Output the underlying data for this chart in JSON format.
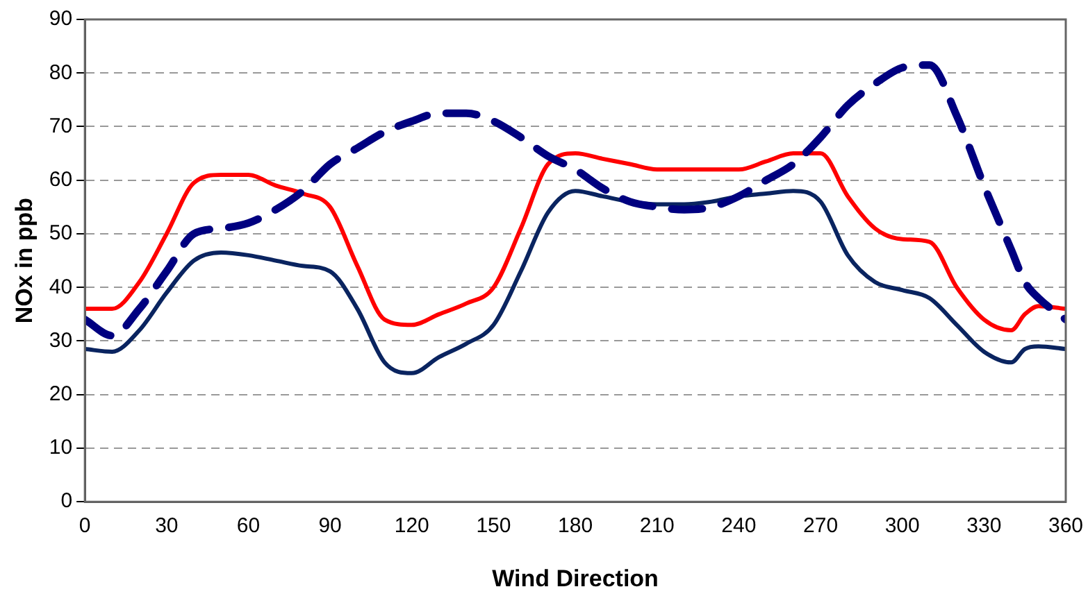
{
  "chart_data": {
    "type": "line",
    "xlabel": "Wind Direction",
    "ylabel": "NOx in ppb",
    "x": [
      0,
      10,
      20,
      30,
      40,
      50,
      60,
      70,
      80,
      90,
      100,
      110,
      120,
      130,
      140,
      150,
      160,
      170,
      180,
      190,
      200,
      210,
      220,
      230,
      240,
      250,
      260,
      270,
      280,
      290,
      300,
      310,
      320,
      330,
      340,
      345,
      350,
      360
    ],
    "series": [
      {
        "color": "#ff0000",
        "line_style": "solid",
        "values": [
          36,
          36,
          41,
          50,
          59.5,
          61,
          61,
          59,
          57.5,
          55,
          44,
          34,
          33,
          35,
          37,
          40,
          51,
          63,
          65,
          64,
          63,
          62,
          62,
          62,
          62,
          63.5,
          65,
          65,
          57,
          51,
          49,
          48.5,
          40,
          34,
          32,
          35,
          36.5,
          36
        ]
      },
      {
        "color": "#0a2460",
        "line_style": "solid",
        "values": [
          28.5,
          28,
          32,
          39,
          45,
          46.5,
          46,
          45,
          44,
          43,
          36,
          26,
          24,
          27,
          29.5,
          33,
          43,
          54,
          58,
          57,
          56,
          55.5,
          55.5,
          56,
          57,
          57.5,
          58,
          56,
          46,
          41,
          39.5,
          38,
          33,
          28,
          26,
          28.5,
          29,
          28.5
        ]
      },
      {
        "color": "#000080",
        "line_style": "dashed",
        "values": [
          34,
          31,
          36,
          43,
          50,
          51,
          52,
          54.5,
          58,
          63,
          66,
          69,
          71,
          72.5,
          72.5,
          71,
          68,
          64.5,
          62,
          58.5,
          56,
          55,
          54.5,
          55,
          57,
          60,
          63,
          68,
          74,
          78,
          81,
          81.5,
          72,
          59,
          47,
          41,
          38,
          34
        ]
      }
    ],
    "xlim": [
      0,
      360
    ],
    "xticks": [
      0,
      30,
      60,
      90,
      120,
      150,
      180,
      210,
      240,
      270,
      300,
      330,
      360
    ],
    "ylim": [
      0,
      90
    ],
    "yticks": [
      0,
      10,
      20,
      30,
      40,
      50,
      60,
      70,
      80,
      90
    ],
    "grid": "y",
    "legend": false,
    "marker": "none"
  }
}
